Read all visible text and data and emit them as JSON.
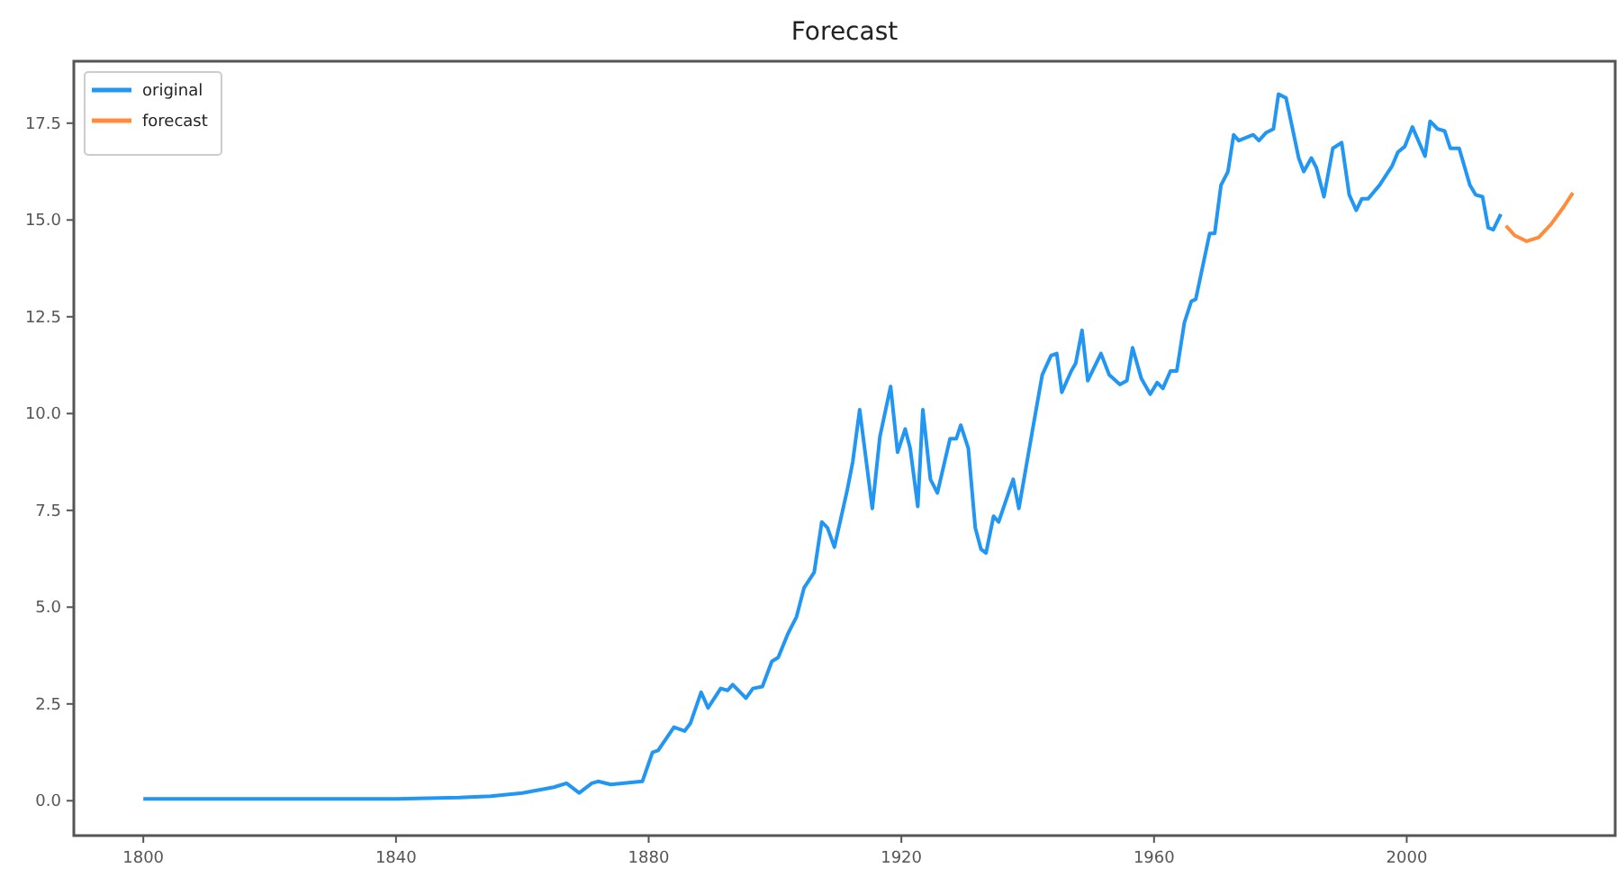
{
  "chart_data": {
    "type": "line",
    "title": "Forecast",
    "legend": "top left",
    "grid": false,
    "xlim": [
      1789,
      2033
    ],
    "ylim": [
      -0.9,
      19.1
    ],
    "xticks": [
      1800,
      1840,
      1880,
      1920,
      1960,
      2000
    ],
    "yticks": [
      {
        "value": 0,
        "label": "0.0"
      },
      {
        "value": 2.5,
        "label": "2.5"
      },
      {
        "value": 5,
        "label": "5.0"
      },
      {
        "value": 7.5,
        "label": "7.5"
      },
      {
        "value": 10,
        "label": "10.0"
      },
      {
        "value": 12.5,
        "label": "12.5"
      },
      {
        "value": 15,
        "label": "15.0"
      },
      {
        "value": 17.5,
        "label": "17.5"
      }
    ],
    "series": [
      {
        "name": "original",
        "color": "#2196f3",
        "x": [
          1800,
          1840,
          1850,
          1855,
          1860,
          1865,
          1867,
          1869,
          1871,
          1872,
          1874,
          1879,
          1880.6,
          1881.5,
          1884,
          1885.7,
          1886.6,
          1888.3,
          1889.4,
          1891.4,
          1892.5,
          1893.3,
          1895.4,
          1896.5,
          1898,
          1899.5,
          1900.5,
          1902,
          1903.4,
          1904.6,
          1906.2,
          1907.4,
          1908.3,
          1909.4,
          1911.4,
          1912.3,
          1913.4,
          1915.4,
          1916.6,
          1918.3,
          1919.4,
          1920.6,
          1921.4,
          1922.6,
          1923.4,
          1924.6,
          1925.7,
          1927.7,
          1928.7,
          1929.4,
          1930.6,
          1931.7,
          1932.6,
          1933.4,
          1934.6,
          1935.4,
          1937.7,
          1938.6,
          1940.9,
          1942.3,
          1943.7,
          1944.6,
          1945.4,
          1946.9,
          1947.6,
          1948.6,
          1949.5,
          1951.6,
          1952.9,
          1954.6,
          1955.7,
          1956.6,
          1958,
          1959.4,
          1960.5,
          1961.4,
          1962.6,
          1963.6,
          1964.8,
          1965.9,
          1966.6,
          1968.8,
          1969.6,
          1970.6,
          1971.7,
          1972.6,
          1973.4,
          1975.7,
          1976.6,
          1977.7,
          1978.9,
          1979.7,
          1980.9,
          1982.9,
          1983.7,
          1984.9,
          1985.7,
          1986.9,
          1988.3,
          1989.7,
          1990.9,
          1992,
          1992.9,
          1993.9,
          1995.7,
          1997.7,
          1998.6,
          1999.7,
          2000.9,
          2001.7,
          2002.9,
          2003.7,
          2004.9,
          2006,
          2006.9,
          2008.3,
          2010,
          2010.9,
          2012,
          2012.9,
          2013.7,
          2014.9
        ],
        "values": [
          0.05,
          0.05,
          0.08,
          0.12,
          0.2,
          0.35,
          0.45,
          0.2,
          0.45,
          0.5,
          0.42,
          0.5,
          1.25,
          1.3,
          1.9,
          1.8,
          2.0,
          2.8,
          2.4,
          2.9,
          2.85,
          3.0,
          2.65,
          2.9,
          2.95,
          3.6,
          3.7,
          4.3,
          4.75,
          5.5,
          5.9,
          7.2,
          7.05,
          6.55,
          8.0,
          8.75,
          10.1,
          7.55,
          9.4,
          10.7,
          9.0,
          9.6,
          9.1,
          7.6,
          10.1,
          8.3,
          7.95,
          9.35,
          9.35,
          9.7,
          9.1,
          7.05,
          6.5,
          6.4,
          7.35,
          7.2,
          8.3,
          7.55,
          9.7,
          11.0,
          11.5,
          11.55,
          10.55,
          11.1,
          11.3,
          12.15,
          10.85,
          11.55,
          11.0,
          10.75,
          10.85,
          11.7,
          10.9,
          10.5,
          10.8,
          10.65,
          11.1,
          11.1,
          12.35,
          12.9,
          12.95,
          14.65,
          14.65,
          15.9,
          16.25,
          17.2,
          17.05,
          17.2,
          17.05,
          17.25,
          17.35,
          18.25,
          18.15,
          16.6,
          16.25,
          16.6,
          16.35,
          15.6,
          16.85,
          17.0,
          15.65,
          15.25,
          15.55,
          15.55,
          15.9,
          16.4,
          16.75,
          16.9,
          17.4,
          17.1,
          16.65,
          17.55,
          17.35,
          17.3,
          16.85,
          16.85,
          15.9,
          15.65,
          15.6,
          14.8,
          14.75,
          15.15
        ]
      },
      {
        "name": "forecast",
        "color": "#ff8c3a",
        "x": [
          2015.7,
          2017.1,
          2019,
          2020.9,
          2022.9,
          2024.9,
          2026.3
        ],
        "values": [
          14.85,
          14.6,
          14.45,
          14.55,
          14.9,
          15.35,
          15.7
        ]
      }
    ]
  }
}
